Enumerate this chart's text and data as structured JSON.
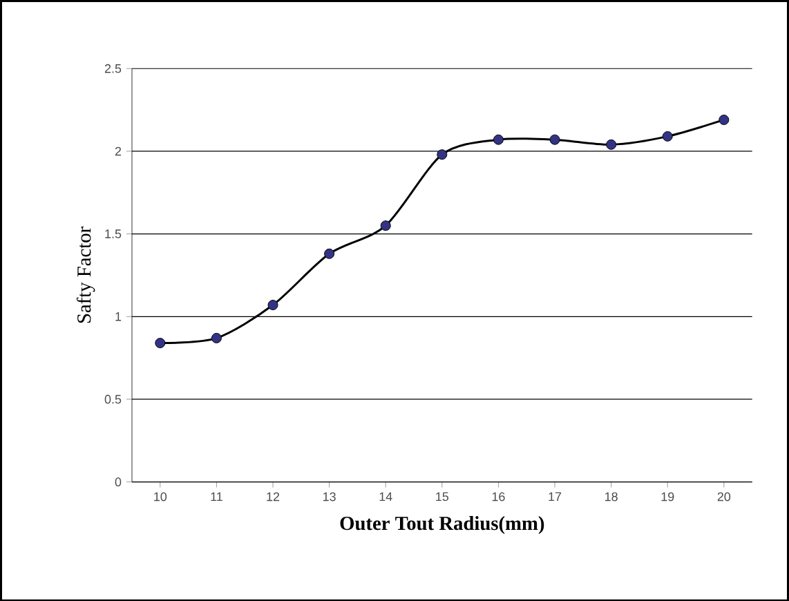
{
  "chart_data": {
    "type": "line",
    "xlabel": "Outer Tout Radius(mm)",
    "ylabel": "Safty Factor",
    "categories": [
      "10",
      "11",
      "12",
      "13",
      "14",
      "15",
      "16",
      "17",
      "18",
      "19",
      "20"
    ],
    "series": [
      {
        "color": "#000000",
        "values": [
          0.84,
          0.87,
          1.07,
          1.38,
          1.55,
          1.98,
          2.07,
          2.07,
          2.04,
          2.09,
          2.19
        ]
      }
    ],
    "ylim": [
      0,
      2.5
    ],
    "yticks": [
      0,
      0.5,
      1,
      1.5,
      2,
      2.5
    ],
    "grid": "y",
    "marker": "circle",
    "line_style": "solid"
  }
}
